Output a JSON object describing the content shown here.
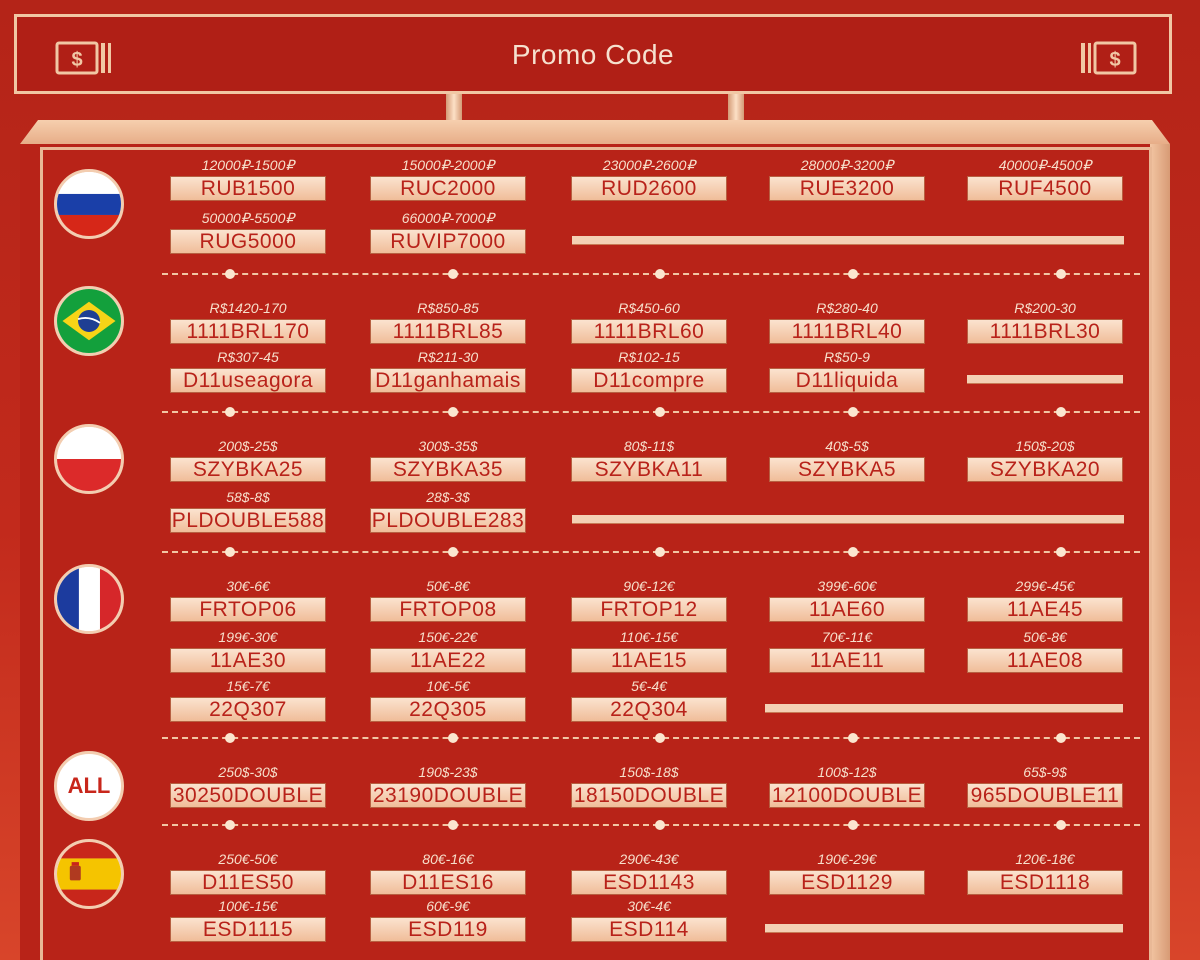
{
  "header": {
    "title": "Promo Code",
    "icon_symbol": "$"
  },
  "colors": {
    "background": "#c22a1c",
    "accent": "#f0bd99",
    "code_text": "#b8221a",
    "condition_text": "#f7dfcb"
  },
  "sections": [
    {
      "id": "ru",
      "flag": "russia-flag-icon",
      "rows": [
        [
          {
            "cond": "12000₽-1500₽",
            "code": "RUB1500"
          },
          {
            "cond": "15000₽-2000₽",
            "code": "RUC2000"
          },
          {
            "cond": "23000₽-2600₽",
            "code": "RUD2600"
          },
          {
            "cond": "28000₽-3200₽",
            "code": "RUE3200"
          },
          {
            "cond": "40000₽-4500₽",
            "code": "RUF4500"
          }
        ],
        [
          {
            "cond": "50000₽-5500₽",
            "code": "RUG5000"
          },
          {
            "cond": "66000₽-7000₽",
            "code": "RUVIP7000"
          }
        ]
      ]
    },
    {
      "id": "br",
      "flag": "brazil-flag-icon",
      "rows": [
        [
          {
            "cond": "R$1420-170",
            "code": "1111BRL170"
          },
          {
            "cond": "R$850-85",
            "code": "1111BRL85"
          },
          {
            "cond": "R$450-60",
            "code": "1111BRL60"
          },
          {
            "cond": "R$280-40",
            "code": "1111BRL40"
          },
          {
            "cond": "R$200-30",
            "code": "1111BRL30"
          }
        ],
        [
          {
            "cond": "R$307-45",
            "code": "D11useagora"
          },
          {
            "cond": "R$211-30",
            "code": "D11ganhamais"
          },
          {
            "cond": "R$102-15",
            "code": "D11compre"
          },
          {
            "cond": "R$50-9",
            "code": "D11liquida"
          }
        ]
      ]
    },
    {
      "id": "pl",
      "flag": "poland-flag-icon",
      "rows": [
        [
          {
            "cond": "200$-25$",
            "code": "SZYBKA25"
          },
          {
            "cond": "300$-35$",
            "code": "SZYBKA35"
          },
          {
            "cond": "80$-11$",
            "code": "SZYBKA11"
          },
          {
            "cond": "40$-5$",
            "code": "SZYBKA5"
          },
          {
            "cond": "150$-20$",
            "code": "SZYBKA20"
          }
        ],
        [
          {
            "cond": "58$-8$",
            "code": "PLDOUBLE588"
          },
          {
            "cond": "28$-3$",
            "code": "PLDOUBLE283"
          }
        ]
      ]
    },
    {
      "id": "fr",
      "flag": "france-flag-icon",
      "rows": [
        [
          {
            "cond": "30€-6€",
            "code": "FRTOP06"
          },
          {
            "cond": "50€-8€",
            "code": "FRTOP08"
          },
          {
            "cond": "90€-12€",
            "code": "FRTOP12"
          },
          {
            "cond": "399€-60€",
            "code": "11AE60"
          },
          {
            "cond": "299€-45€",
            "code": "11AE45"
          }
        ],
        [
          {
            "cond": "199€-30€",
            "code": "11AE30"
          },
          {
            "cond": "150€-22€",
            "code": "11AE22"
          },
          {
            "cond": "110€-15€",
            "code": "11AE15"
          },
          {
            "cond": "70€-11€",
            "code": "11AE11"
          },
          {
            "cond": "50€-8€",
            "code": "11AE08"
          }
        ],
        [
          {
            "cond": "15€-7€",
            "code": "22Q307"
          },
          {
            "cond": "10€-5€",
            "code": "22Q305"
          },
          {
            "cond": "5€-4€",
            "code": "22Q304"
          }
        ]
      ]
    },
    {
      "id": "all",
      "badge": "ALL",
      "rows": [
        [
          {
            "cond": "250$-30$",
            "code": "30250DOUBLE"
          },
          {
            "cond": "190$-23$",
            "code": "23190DOUBLE"
          },
          {
            "cond": "150$-18$",
            "code": "18150DOUBLE"
          },
          {
            "cond": "100$-12$",
            "code": "12100DOUBLE"
          },
          {
            "cond": "65$-9$",
            "code": "965DOUBLE11"
          }
        ]
      ]
    },
    {
      "id": "es",
      "flag": "spain-flag-icon",
      "rows": [
        [
          {
            "cond": "250€-50€",
            "code": "D11ES50"
          },
          {
            "cond": "80€-16€",
            "code": "D11ES16"
          },
          {
            "cond": "290€-43€",
            "code": "ESD1143"
          },
          {
            "cond": "190€-29€",
            "code": "ESD1129"
          },
          {
            "cond": "120€-18€",
            "code": "ESD1118"
          }
        ],
        [
          {
            "cond": "100€-15€",
            "code": "ESD1115"
          },
          {
            "cond": "60€-9€",
            "code": "ESD119"
          },
          {
            "cond": "30€-4€",
            "code": "ESD114"
          }
        ]
      ]
    }
  ]
}
